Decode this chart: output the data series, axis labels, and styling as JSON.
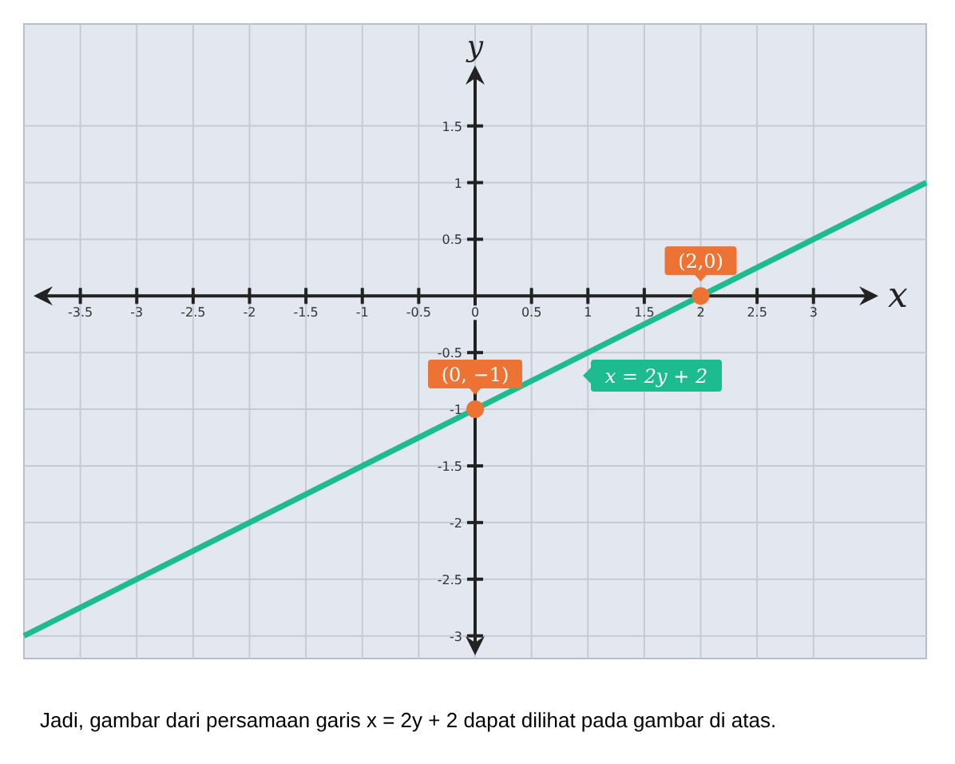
{
  "chart_data": {
    "type": "line",
    "xlabel": "x",
    "ylabel": "y",
    "xlim": [
      -4,
      4
    ],
    "ylim": [
      -3.2,
      2.4
    ],
    "xticks": [
      -3.5,
      -3,
      -2.5,
      -2,
      -1.5,
      -1,
      -0.5,
      0,
      0.5,
      1,
      1.5,
      2,
      2.5,
      3
    ],
    "yticks": [
      -3,
      -2.5,
      -2,
      -1.5,
      -1,
      -0.5,
      0.5,
      1,
      1.5
    ],
    "grid": true,
    "series": [
      {
        "color": "#1cbc8f",
        "x": [
          -4,
          4
        ],
        "values": [
          -3,
          1
        ],
        "marker": "none",
        "line_style": "solid"
      },
      {
        "type": "scatter",
        "color": "#ec7333",
        "x": [
          2,
          0
        ],
        "values": [
          0,
          -1
        ],
        "marker": "circle"
      }
    ],
    "annotations": [
      {
        "text": "(2,0)",
        "x": 2,
        "y": 0
      },
      {
        "text": "(0, −1)",
        "x": 0,
        "y": -1
      },
      "x = 2y + 2",
      "Jadi, gambar dari persamaan garis x = 2y + 2 dapat dilihat pada gambar di atas."
    ]
  }
}
